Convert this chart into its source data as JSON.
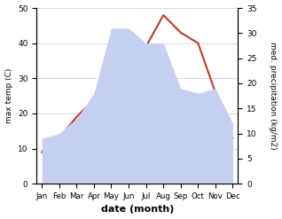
{
  "months": [
    "Jan",
    "Feb",
    "Mar",
    "Apr",
    "May",
    "Jun",
    "Jul",
    "Aug",
    "Sep",
    "Oct",
    "Nov",
    "Dec"
  ],
  "temperature": [
    9,
    13,
    19,
    24,
    30,
    35,
    39,
    48,
    43,
    40,
    26,
    13
  ],
  "precipitation": [
    9,
    10,
    13,
    18,
    31,
    31,
    28,
    28,
    19,
    18,
    19,
    12
  ],
  "temp_ylim": [
    0,
    50
  ],
  "precip_ylim": [
    0,
    35
  ],
  "temp_color": "#c0392b",
  "precip_fill_color": "#c5d0f0",
  "xlabel": "date (month)",
  "ylabel_left": "max temp (C)",
  "ylabel_right": "med. precipitation (kg/m2)",
  "bg_color": "#ffffff",
  "grid_color": "#cccccc",
  "temp_yticks": [
    0,
    10,
    20,
    30,
    40,
    50
  ],
  "precip_yticks": [
    0,
    5,
    10,
    15,
    20,
    25,
    30,
    35
  ]
}
